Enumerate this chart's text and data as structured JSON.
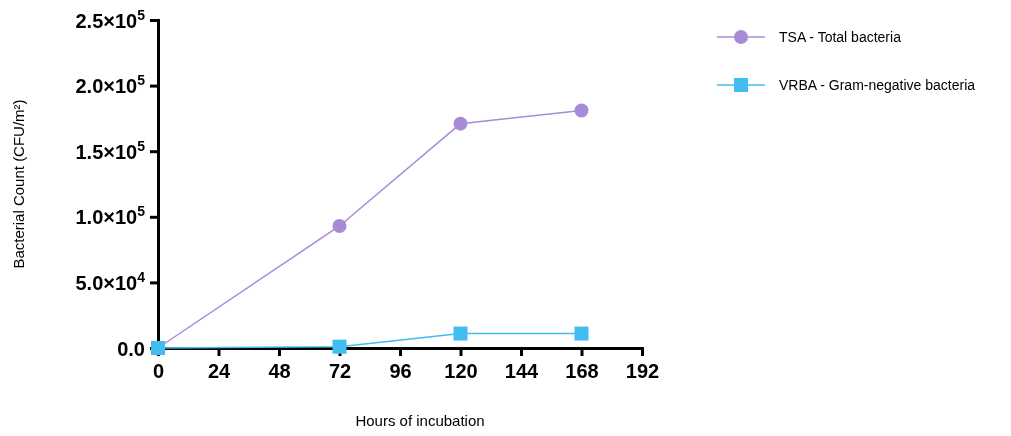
{
  "chart_data": {
    "type": "line",
    "xlabel": "Hours of incubation",
    "ylabel": "Bacterial Count (CFU/m²)",
    "xlim": [
      0,
      192
    ],
    "xticks": [
      0,
      24,
      48,
      72,
      96,
      120,
      144,
      168,
      192
    ],
    "ylim": [
      0,
      250000
    ],
    "yticks": [
      {
        "value": 0,
        "label": "0.0"
      },
      {
        "value": 50000,
        "label": "5.0×10$^{4}$"
      },
      {
        "value": 100000,
        "label": "1.0×10$^{5}$"
      },
      {
        "value": 150000,
        "label": "1.5×10$^{5}$"
      },
      {
        "value": 200000,
        "label": "2.0×10$^{5}$"
      },
      {
        "value": 250000,
        "label": "2.5×10$^{5}$"
      }
    ],
    "grid": false,
    "legend": "top right",
    "line_style": "solid",
    "series": [
      {
        "name": "TSA - Total bacteria",
        "color": "#a78bd8",
        "marker": "circle",
        "x": [
          0,
          72,
          120,
          168
        ],
        "values": [
          0,
          93000,
          171000,
          181000
        ]
      },
      {
        "name": "VRBA - Gram-negative bacteria",
        "color": "#41bdef",
        "marker": "square",
        "x": [
          0,
          72,
          120,
          168
        ],
        "values": [
          0,
          1000,
          11000,
          11000
        ]
      }
    ]
  }
}
